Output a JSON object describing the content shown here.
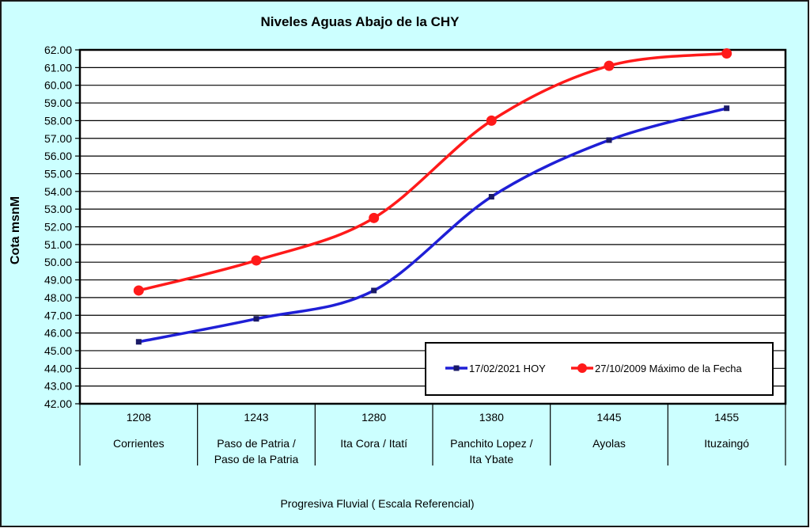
{
  "chart_data": {
    "type": "line",
    "title": "Niveles Aguas Abajo de la CHY",
    "ylabel": "Cota msnM",
    "xlabel": "Progresiva Fluvial ( Escala Referencial)",
    "ylim": [
      42,
      62
    ],
    "ytick_step": 1,
    "ytick_labels": [
      "42.00",
      "43.00",
      "44.00",
      "45.00",
      "46.00",
      "47.00",
      "48.00",
      "49.00",
      "50.00",
      "51.00",
      "52.00",
      "53.00",
      "54.00",
      "55.00",
      "56.00",
      "57.00",
      "58.00",
      "59.00",
      "60.00",
      "61.00",
      "62.00"
    ],
    "grid": true,
    "legend_position": "lower-right",
    "categories": [
      {
        "km": "1208",
        "name_lines": [
          "Corrientes"
        ]
      },
      {
        "km": "1243",
        "name_lines": [
          "Paso de Patria /",
          "Paso de la Patria"
        ]
      },
      {
        "km": "1280",
        "name_lines": [
          "Ita Cora / Itatí"
        ]
      },
      {
        "km": "1380",
        "name_lines": [
          "Panchito Lopez /",
          "Ita Ybate"
        ]
      },
      {
        "km": "1445",
        "name_lines": [
          "Ayolas"
        ]
      },
      {
        "km": "1455",
        "name_lines": [
          "Ituzaingó"
        ]
      }
    ],
    "series": [
      {
        "name": "17/02/2021 HOY",
        "color": "#1f1fd6",
        "marker": "square",
        "values": [
          45.5,
          46.8,
          48.4,
          53.7,
          56.9,
          58.7
        ]
      },
      {
        "name": "27/10/2009 Máximo de la Fecha",
        "color": "#ff1a1a",
        "marker": "circle",
        "values": [
          48.4,
          50.1,
          52.5,
          58.0,
          61.1,
          61.8
        ]
      }
    ],
    "colors": {
      "background": "#ccffff",
      "plot_area": "#ffffff",
      "frame_border": "#1a1a1a"
    }
  }
}
